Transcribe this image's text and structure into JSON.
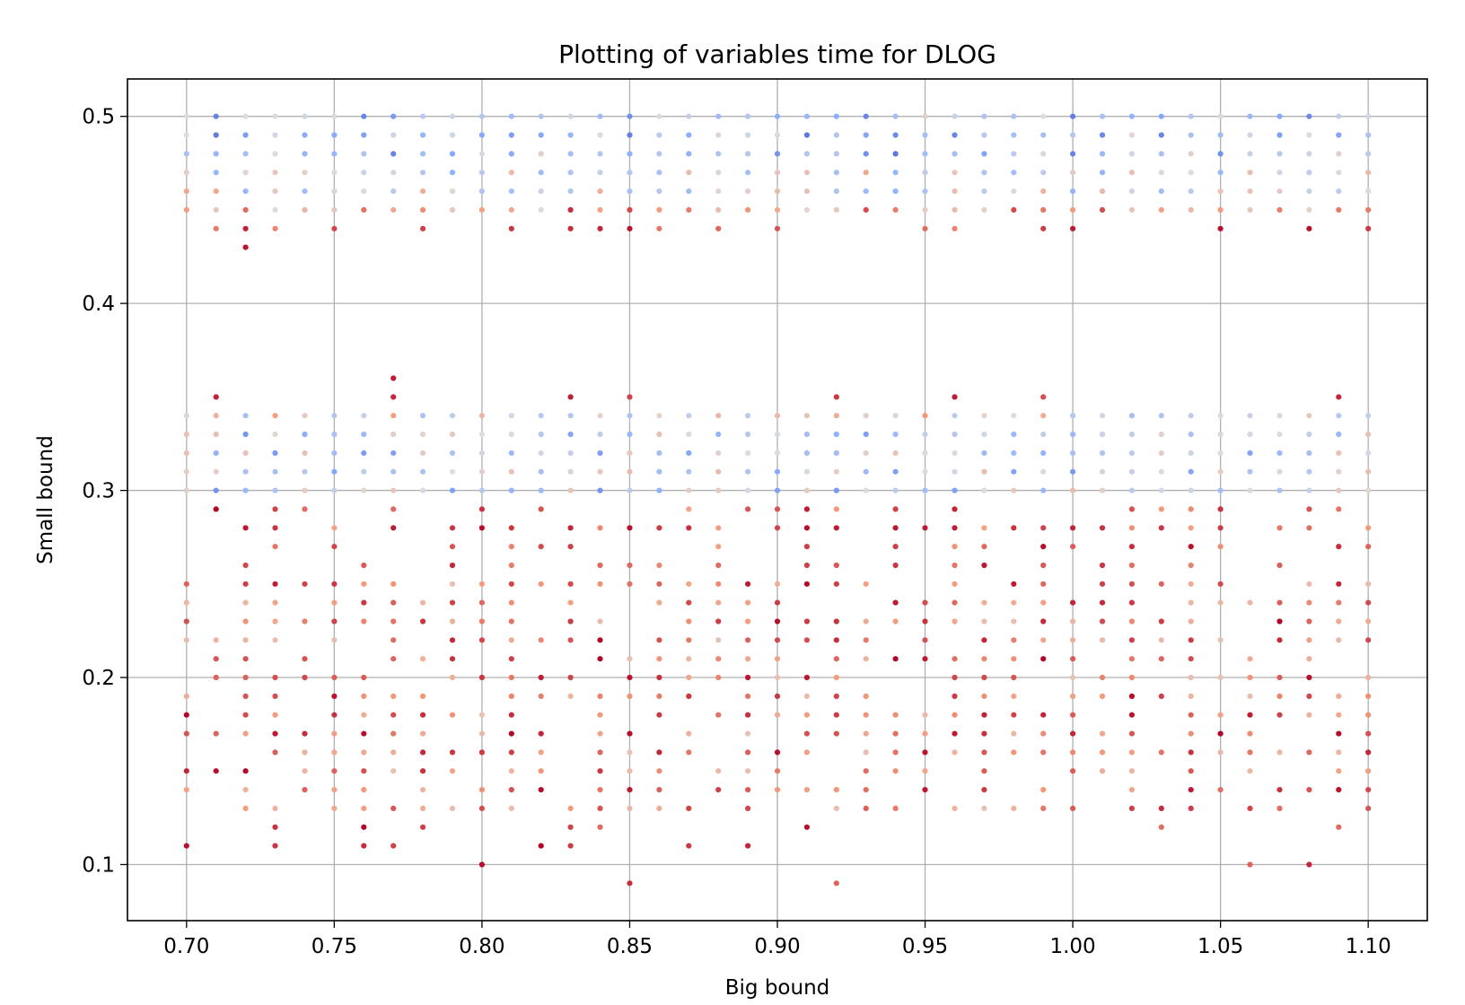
{
  "chart_data": {
    "type": "scatter",
    "title": "Plotting of variables time for DLOG",
    "xlabel": "Big bound",
    "ylabel": "Small bound",
    "xlim": [
      0.68,
      1.12
    ],
    "ylim": [
      0.07,
      0.52
    ],
    "xticks": [
      "0.70",
      "0.75",
      "0.80",
      "0.85",
      "0.90",
      "0.95",
      "1.00",
      "1.05",
      "1.10"
    ],
    "yticks": [
      "0.1",
      "0.2",
      "0.3",
      "0.4",
      "0.5"
    ],
    "grid": true,
    "legend": "none",
    "colormap": "coolwarm",
    "colors": {
      "low": "#3b4cc0",
      "mid": "#dddddd",
      "high": "#b40426"
    },
    "x_values": [
      0.7,
      0.71,
      0.72,
      0.73,
      0.74,
      0.75,
      0.76,
      0.77,
      0.78,
      0.79,
      0.8,
      0.81,
      0.82,
      0.83,
      0.84,
      0.85,
      0.86,
      0.87,
      0.88,
      0.89,
      0.9,
      0.91,
      0.92,
      0.93,
      0.94,
      0.95,
      0.96,
      0.97,
      0.98,
      0.99,
      1.0,
      1.01,
      1.02,
      1.03,
      1.04,
      1.05,
      1.06,
      1.07,
      1.08,
      1.09,
      1.1
    ],
    "upper_band": {
      "y_values": [
        0.44,
        0.45,
        0.46,
        0.47,
        0.48,
        0.49,
        0.5
      ],
      "outliers": [
        [
          0.72,
          0.43
        ]
      ]
    },
    "lower_band": {
      "y_range": [
        0.13,
        0.35
      ],
      "step": 0.01,
      "outliers": [
        [
          0.77,
          0.36
        ],
        [
          0.7,
          0.11
        ],
        [
          0.73,
          0.11
        ],
        [
          0.76,
          0.11
        ],
        [
          0.77,
          0.11
        ],
        [
          0.8,
          0.1
        ],
        [
          0.82,
          0.11
        ],
        [
          0.83,
          0.11
        ],
        [
          0.85,
          0.09
        ],
        [
          0.87,
          0.11
        ],
        [
          0.89,
          0.11
        ],
        [
          0.92,
          0.09
        ],
        [
          1.06,
          0.1
        ],
        [
          1.08,
          0.1
        ],
        [
          0.73,
          0.12
        ],
        [
          0.76,
          0.12
        ],
        [
          0.78,
          0.12
        ],
        [
          0.83,
          0.12
        ],
        [
          0.84,
          0.12
        ],
        [
          0.91,
          0.12
        ],
        [
          1.03,
          0.12
        ],
        [
          1.09,
          0.12
        ]
      ]
    }
  }
}
